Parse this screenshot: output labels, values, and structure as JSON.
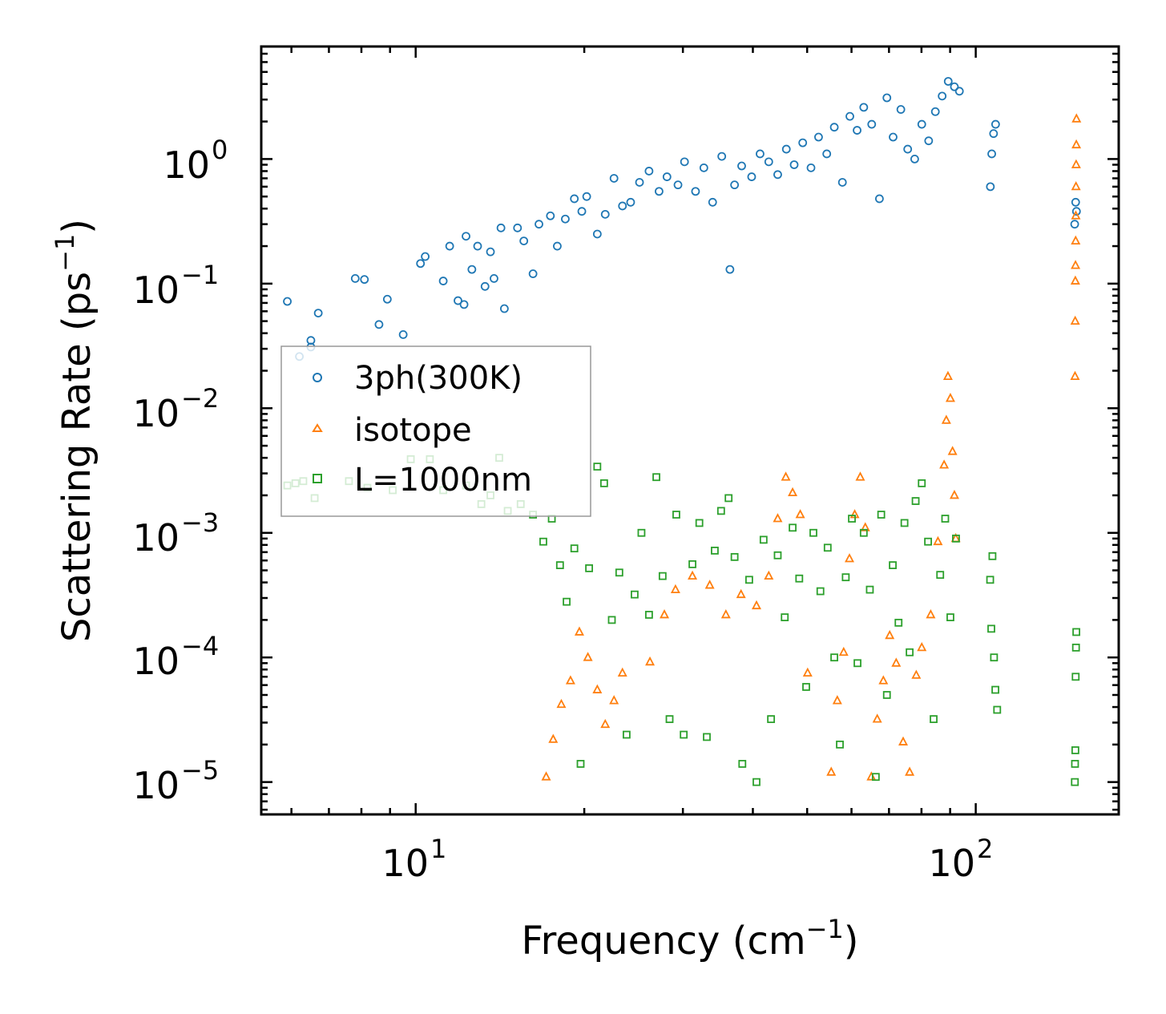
{
  "chart_data": {
    "type": "scatter",
    "xscale": "log",
    "yscale": "log",
    "xlim": [
      5.3,
      180
    ],
    "ylim": [
      5.5e-06,
      8.0
    ],
    "xlabel": "Frequency (cm",
    "xlabel_sup": "−1",
    "xlabel_end": ")",
    "ylabel": "Scattering Rate (ps",
    "ylabel_sup": "−1",
    "ylabel_end": ")",
    "xticks": [
      {
        "value": 10,
        "base": "10",
        "exp": "1"
      },
      {
        "value": 100,
        "base": "10",
        "exp": "2"
      }
    ],
    "yticks": [
      {
        "value": 1,
        "base": "10",
        "exp": "0"
      },
      {
        "value": 0.1,
        "base": "10",
        "exp": "−1"
      },
      {
        "value": 0.01,
        "base": "10",
        "exp": "−2"
      },
      {
        "value": 0.001,
        "base": "10",
        "exp": "−3"
      },
      {
        "value": 0.0001,
        "base": "10",
        "exp": "−4"
      },
      {
        "value": 1e-05,
        "base": "10",
        "exp": "−5"
      }
    ],
    "legend_position": "center-left",
    "series": [
      {
        "name": "3ph(300K)",
        "marker": "circle",
        "color": "#1f77b4",
        "points": [
          [
            5.9,
            0.072
          ],
          [
            6.2,
            0.026
          ],
          [
            6.5,
            0.035
          ],
          [
            6.5,
            0.031
          ],
          [
            6.7,
            0.058
          ],
          [
            7.8,
            0.11
          ],
          [
            8.1,
            0.108
          ],
          [
            8.6,
            0.047
          ],
          [
            8.9,
            0.075
          ],
          [
            9.5,
            0.039
          ],
          [
            10.2,
            0.145
          ],
          [
            10.4,
            0.165
          ],
          [
            11.2,
            0.105
          ],
          [
            11.5,
            0.2
          ],
          [
            11.9,
            0.073
          ],
          [
            12.2,
            0.068
          ],
          [
            12.3,
            0.24
          ],
          [
            12.6,
            0.13
          ],
          [
            12.9,
            0.2
          ],
          [
            13.3,
            0.095
          ],
          [
            13.6,
            0.18
          ],
          [
            13.8,
            0.11
          ],
          [
            14.2,
            0.28
          ],
          [
            14.4,
            0.063
          ],
          [
            15.2,
            0.28
          ],
          [
            15.6,
            0.22
          ],
          [
            16.2,
            0.12
          ],
          [
            16.6,
            0.3
          ],
          [
            17.4,
            0.35
          ],
          [
            17.9,
            0.2
          ],
          [
            18.5,
            0.33
          ],
          [
            19.2,
            0.48
          ],
          [
            19.8,
            0.38
          ],
          [
            20.2,
            0.5
          ],
          [
            21.1,
            0.25
          ],
          [
            21.8,
            0.36
          ],
          [
            22.6,
            0.7
          ],
          [
            23.4,
            0.42
          ],
          [
            24.2,
            0.45
          ],
          [
            25.1,
            0.65
          ],
          [
            26.1,
            0.8
          ],
          [
            27.2,
            0.55
          ],
          [
            28.1,
            0.72
          ],
          [
            29.4,
            0.62
          ],
          [
            30.2,
            0.95
          ],
          [
            31.6,
            0.55
          ],
          [
            32.7,
            0.85
          ],
          [
            33.9,
            0.45
          ],
          [
            35.2,
            1.05
          ],
          [
            36.4,
            0.13
          ],
          [
            37.1,
            0.62
          ],
          [
            38.2,
            0.88
          ],
          [
            39.8,
            0.72
          ],
          [
            41.2,
            1.1
          ],
          [
            42.7,
            0.95
          ],
          [
            44.3,
            0.75
          ],
          [
            45.9,
            1.2
          ],
          [
            47.4,
            0.9
          ],
          [
            49.1,
            1.35
          ],
          [
            50.8,
            0.85
          ],
          [
            52.4,
            1.5
          ],
          [
            54.2,
            1.1
          ],
          [
            55.9,
            1.8
          ],
          [
            57.8,
            0.65
          ],
          [
            59.6,
            2.2
          ],
          [
            61.4,
            1.7
          ],
          [
            63.1,
            2.6
          ],
          [
            65.2,
            1.9
          ],
          [
            67.3,
            0.48
          ],
          [
            69.4,
            3.1
          ],
          [
            71.2,
            1.5
          ],
          [
            73.5,
            2.5
          ],
          [
            75.6,
            1.2
          ],
          [
            77.8,
            1.0
          ],
          [
            80.1,
            1.9
          ],
          [
            82.4,
            1.4
          ],
          [
            84.7,
            2.4
          ],
          [
            87.1,
            3.2
          ],
          [
            89.3,
            4.2
          ],
          [
            91.6,
            3.8
          ],
          [
            93.5,
            3.5
          ],
          [
            106.2,
            0.6
          ],
          [
            106.8,
            1.1
          ],
          [
            107.6,
            1.6
          ],
          [
            108.5,
            1.9
          ],
          [
            150.2,
            0.3
          ],
          [
            150.8,
            0.45
          ],
          [
            151.3,
            0.38
          ]
        ]
      },
      {
        "name": "isotope",
        "marker": "triangle",
        "color": "#ff7f0e",
        "points": [
          [
            17.1,
            1.1e-05
          ],
          [
            17.6,
            2.2e-05
          ],
          [
            18.2,
            4.2e-05
          ],
          [
            18.9,
            6.5e-05
          ],
          [
            19.6,
            0.00016
          ],
          [
            20.3,
            0.0001
          ],
          [
            21.1,
            5.5e-05
          ],
          [
            21.8,
            2.9e-05
          ],
          [
            22.6,
            4.5e-05
          ],
          [
            23.4,
            7.5e-05
          ],
          [
            26.2,
            9.2e-05
          ],
          [
            27.8,
            0.00022
          ],
          [
            29.1,
            0.00035
          ],
          [
            31.2,
            0.00045
          ],
          [
            33.5,
            0.00038
          ],
          [
            35.8,
            0.00022
          ],
          [
            38.1,
            0.00032
          ],
          [
            40.6,
            0.00026
          ],
          [
            42.7,
            0.00045
          ],
          [
            44.3,
            0.0013
          ],
          [
            45.8,
            0.0028
          ],
          [
            47.1,
            0.0021
          ],
          [
            48.6,
            0.0014
          ],
          [
            50.1,
            7.5e-05
          ],
          [
            55.2,
            1.2e-05
          ],
          [
            56.6,
            4.5e-05
          ],
          [
            58.1,
            0.00011
          ],
          [
            59.5,
            0.00062
          ],
          [
            60.8,
            0.0014
          ],
          [
            62.2,
            0.0028
          ],
          [
            63.5,
            0.0011
          ],
          [
            65.1,
            1.1e-05
          ],
          [
            66.7,
            3.2e-05
          ],
          [
            68.4,
            6.5e-05
          ],
          [
            70.2,
            0.00015
          ],
          [
            72.1,
            9e-05
          ],
          [
            74.2,
            2.1e-05
          ],
          [
            76.2,
            1.2e-05
          ],
          [
            78.3,
            7.2e-05
          ],
          [
            80.1,
            0.00012
          ],
          [
            83.1,
            0.00022
          ],
          [
            85.6,
            0.00085
          ],
          [
            87.8,
            0.0035
          ],
          [
            88.6,
            0.008
          ],
          [
            89.2,
            0.018
          ],
          [
            90.1,
            0.012
          ],
          [
            90.9,
            0.0045
          ],
          [
            91.6,
            0.002
          ],
          [
            92.1,
            0.0009
          ],
          [
            150.4,
            0.018
          ],
          [
            150.5,
            0.05
          ],
          [
            150.6,
            0.105
          ],
          [
            150.7,
            0.14
          ],
          [
            150.8,
            0.22
          ],
          [
            150.9,
            0.35
          ],
          [
            151.0,
            0.6
          ],
          [
            151.1,
            0.9
          ],
          [
            151.2,
            1.3
          ],
          [
            151.3,
            2.1
          ]
        ]
      },
      {
        "name": "L=1000nm",
        "marker": "square",
        "color": "#2ca02c",
        "points": [
          [
            5.9,
            0.0024
          ],
          [
            6.1,
            0.0025
          ],
          [
            6.3,
            0.0026
          ],
          [
            6.6,
            0.0019
          ],
          [
            7.6,
            0.0026
          ],
          [
            8.2,
            0.0023
          ],
          [
            9.1,
            0.0022
          ],
          [
            9.8,
            0.0039
          ],
          [
            10.6,
            0.0039
          ],
          [
            11.2,
            0.0022
          ],
          [
            12.3,
            0.0024
          ],
          [
            13.1,
            0.0017
          ],
          [
            13.6,
            0.002
          ],
          [
            14.1,
            0.004
          ],
          [
            14.6,
            0.0015
          ],
          [
            15.4,
            0.0017
          ],
          [
            16.2,
            0.0014
          ],
          [
            16.9,
            0.00085
          ],
          [
            17.5,
            0.0013
          ],
          [
            18.1,
            0.00055
          ],
          [
            18.6,
            0.00028
          ],
          [
            19.2,
            0.00075
          ],
          [
            19.7,
            1.4e-05
          ],
          [
            20.4,
            0.00052
          ],
          [
            21.1,
            0.0034
          ],
          [
            21.7,
            0.0025
          ],
          [
            22.4,
            0.0002
          ],
          [
            23.1,
            0.00048
          ],
          [
            23.8,
            2.4e-05
          ],
          [
            24.6,
            0.00032
          ],
          [
            25.3,
            0.001
          ],
          [
            26.1,
            0.00022
          ],
          [
            26.9,
            0.0028
          ],
          [
            27.6,
            0.00045
          ],
          [
            28.4,
            3.2e-05
          ],
          [
            29.2,
            0.0014
          ],
          [
            30.1,
            2.4e-05
          ],
          [
            31.2,
            0.00056
          ],
          [
            32.1,
            0.0012
          ],
          [
            33.1,
            2.3e-05
          ],
          [
            34.2,
            0.00072
          ],
          [
            35.1,
            0.0015
          ],
          [
            36.2,
            0.0019
          ],
          [
            37.1,
            0.00064
          ],
          [
            38.3,
            1.4e-05
          ],
          [
            39.4,
            0.00042
          ],
          [
            40.6,
            1e-05
          ],
          [
            41.8,
            0.00088
          ],
          [
            43.1,
            3.2e-05
          ],
          [
            44.3,
            0.00066
          ],
          [
            45.6,
            0.00021
          ],
          [
            47.1,
            0.0011
          ],
          [
            48.4,
            0.00043
          ],
          [
            49.8,
            5.8e-05
          ],
          [
            51.3,
            0.001
          ],
          [
            52.8,
            0.00034
          ],
          [
            54.4,
            0.00076
          ],
          [
            55.9,
            0.0001
          ],
          [
            57.2,
            2e-05
          ],
          [
            58.6,
            0.00044
          ],
          [
            60.1,
            0.0013
          ],
          [
            61.5,
            9e-05
          ],
          [
            63.1,
            0.001
          ],
          [
            64.7,
            0.00035
          ],
          [
            66.3,
            1.1e-05
          ],
          [
            67.8,
            0.0014
          ],
          [
            69.4,
            5e-05
          ],
          [
            71.1,
            0.00055
          ],
          [
            72.8,
            0.00019
          ],
          [
            74.6,
            0.0012
          ],
          [
            76.2,
            0.00011
          ],
          [
            78.1,
            0.0018
          ],
          [
            80.1,
            0.0025
          ],
          [
            82.2,
            0.00085
          ],
          [
            84.1,
            3.2e-05
          ],
          [
            86.4,
            0.00046
          ],
          [
            88.2,
            0.0013
          ],
          [
            90.1,
            0.00021
          ],
          [
            92.2,
            0.0009
          ],
          [
            106.1,
            0.00042
          ],
          [
            106.6,
            0.00017
          ],
          [
            107.1,
            0.00065
          ],
          [
            107.8,
            0.0001
          ],
          [
            108.4,
            5.5e-05
          ],
          [
            109.2,
            3.8e-05
          ],
          [
            150.3,
            1e-05
          ],
          [
            150.4,
            1.4e-05
          ],
          [
            150.6,
            1.8e-05
          ],
          [
            150.8,
            7e-05
          ],
          [
            151.0,
            0.00012
          ],
          [
            151.2,
            0.00016
          ]
        ]
      }
    ]
  }
}
